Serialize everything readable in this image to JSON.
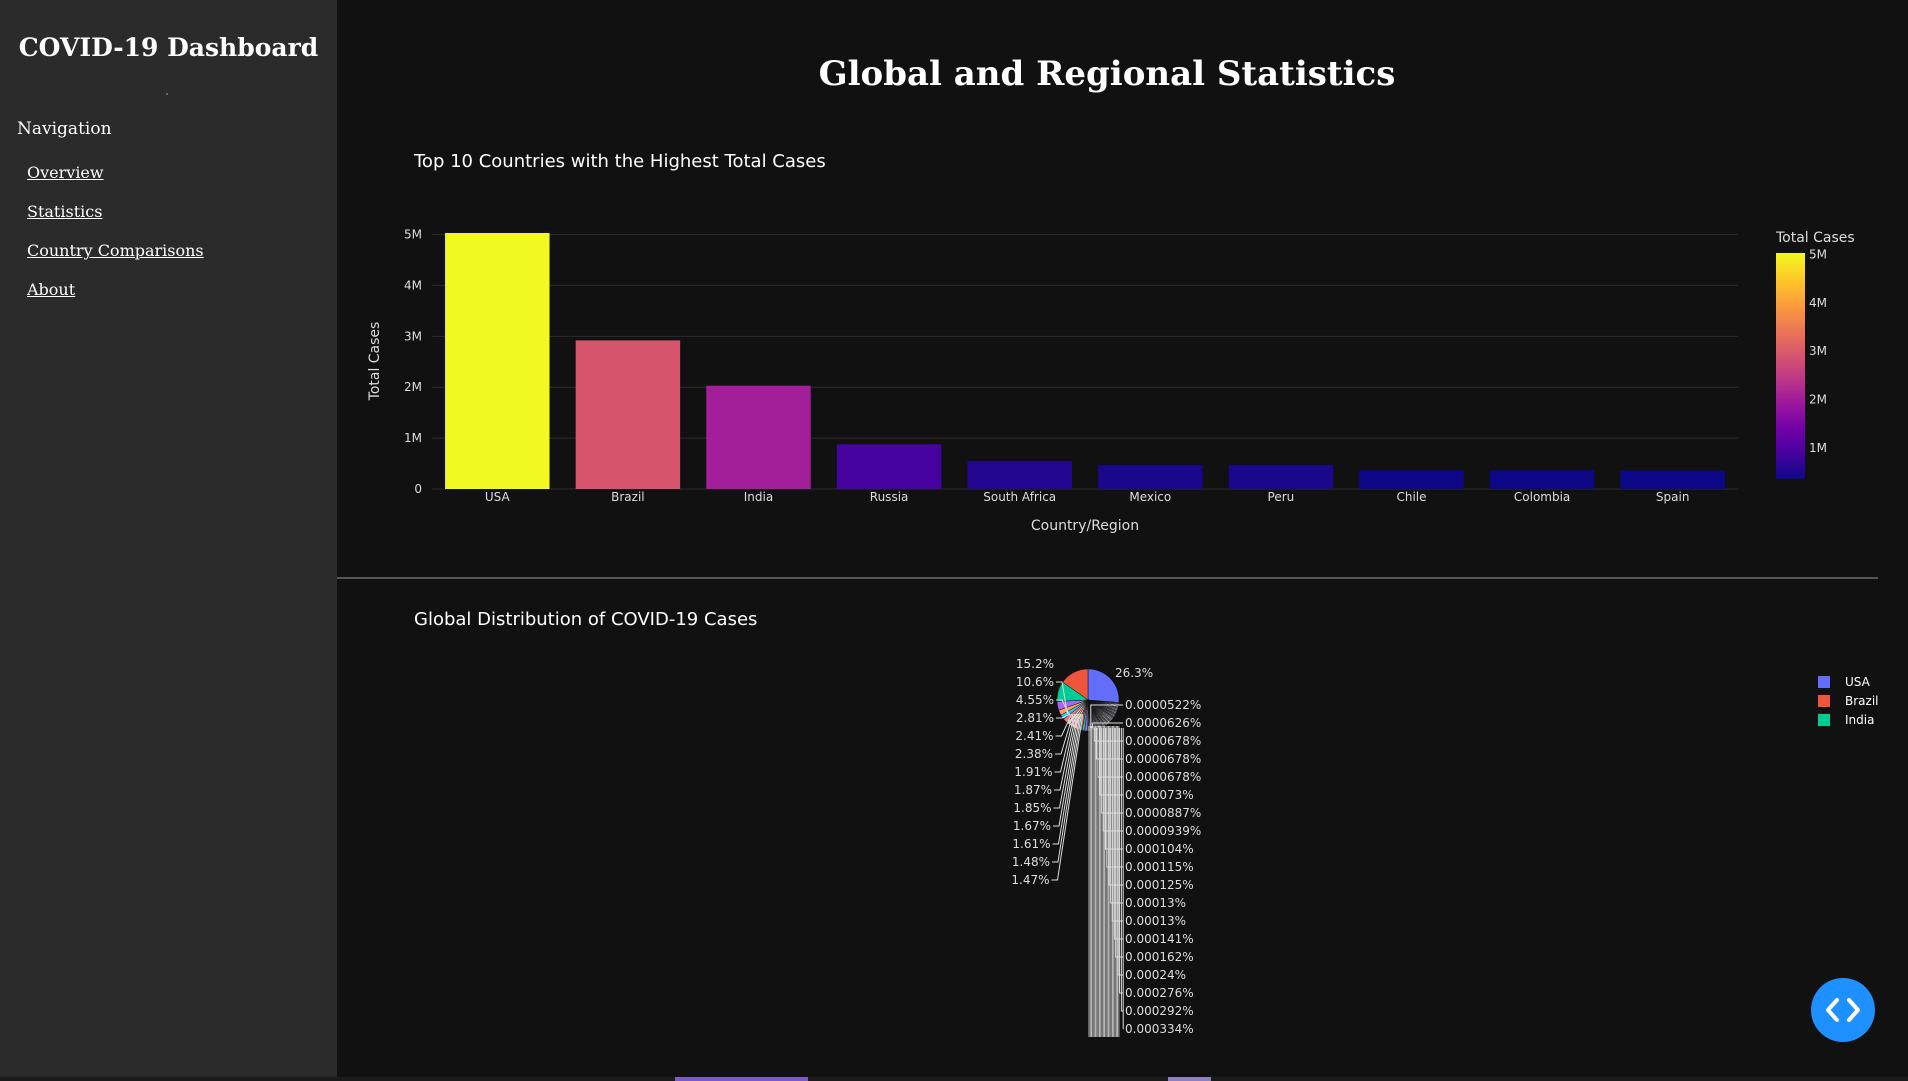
{
  "sidebar": {
    "title": "COVID-19 Dashboard",
    "nav_heading": "Navigation",
    "items": [
      {
        "label": "Overview"
      },
      {
        "label": "Statistics"
      },
      {
        "label": "Country Comparisons"
      },
      {
        "label": "About"
      }
    ]
  },
  "main": {
    "title": "Global and Regional Statistics"
  },
  "colors": {
    "background": "#111111",
    "sidebar": "#2b2b2b",
    "accent_button": "#1e90ff",
    "colorscale": [
      "#0d0887",
      "#46039f",
      "#7201a8",
      "#9c179e",
      "#bd3786",
      "#d8576b",
      "#ed7953",
      "#fb9f3a",
      "#fdca26",
      "#f0f921"
    ]
  },
  "code_button": {
    "icon": "code-brackets-icon"
  },
  "chart_data": [
    {
      "type": "bar",
      "title": "Top 10 Countries with the Highest Total Cases",
      "xlabel": "Country/Region",
      "ylabel": "Total Cases",
      "categories": [
        "USA",
        "Brazil",
        "India",
        "Russia",
        "South Africa",
        "Mexico",
        "Peru",
        "Chile",
        "Colombia",
        "Spain"
      ],
      "values": [
        5030000,
        2920000,
        2030000,
        880000,
        550000,
        470000,
        470000,
        370000,
        370000,
        360000
      ],
      "ylim": [
        0,
        5030000
      ],
      "yticks": [
        0,
        1000000,
        2000000,
        3000000,
        4000000,
        5000000
      ],
      "ytick_labels": [
        "0",
        "1M",
        "2M",
        "3M",
        "4M",
        "5M"
      ],
      "colorbar": {
        "title": "Total Cases",
        "range": [
          360000,
          5030000
        ],
        "ticks": [
          1000000,
          2000000,
          3000000,
          4000000,
          5000000
        ],
        "tick_labels": [
          "1M",
          "2M",
          "3M",
          "4M",
          "5M"
        ]
      },
      "grid": true
    },
    {
      "type": "pie",
      "title": "Global Distribution of COVID-19 Cases",
      "legend": [
        "USA",
        "Brazil",
        "India"
      ],
      "legend_colors": [
        "#636efa",
        "#ef553b",
        "#00cc96"
      ],
      "left_labels": [
        "15.2%",
        "10.6%",
        "4.55%",
        "2.81%",
        "2.41%",
        "2.38%",
        "1.91%",
        "1.87%",
        "1.85%",
        "1.67%",
        "1.61%",
        "1.48%",
        "1.47%"
      ],
      "right_labels": [
        "26.3%",
        "0.0000522%",
        "0.0000626%",
        "0.0000678%",
        "0.0000678%",
        "0.0000678%",
        "0.000073%",
        "0.0000887%",
        "0.0000939%",
        "0.000104%",
        "0.000115%",
        "0.000125%",
        "0.00013%",
        "0.00013%",
        "0.000141%",
        "0.000162%",
        "0.00024%",
        "0.000276%",
        "0.000292%",
        "0.000334%"
      ],
      "slice_values": [
        26.3,
        15.2,
        10.6,
        4.55,
        2.81,
        2.41,
        2.38,
        1.91,
        1.87,
        1.85,
        1.67,
        1.61,
        1.48,
        1.47
      ],
      "slice_colors": [
        "#636efa",
        "#ef553b",
        "#00cc96",
        "#ab63fa",
        "#ffa15a",
        "#19d3f3",
        "#ff6692",
        "#b6e880",
        "#ff97ff",
        "#fecb52",
        "#636efa",
        "#ef553b",
        "#00cc96",
        "#ab63fa"
      ]
    }
  ]
}
